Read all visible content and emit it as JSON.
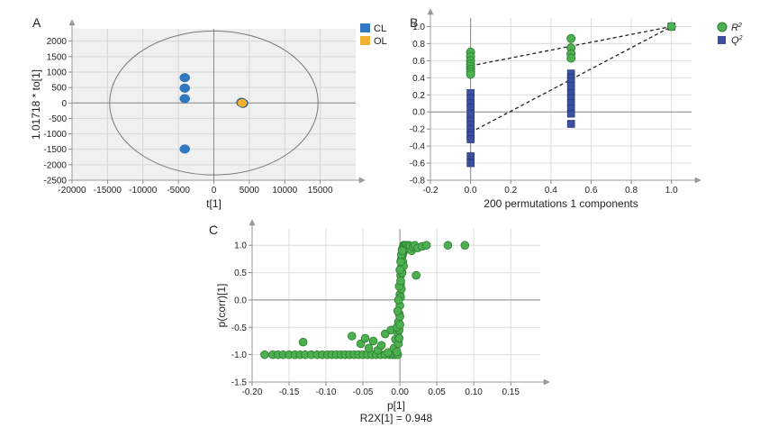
{
  "chart_data": [
    {
      "panel": "A",
      "type": "scatter",
      "xlabel": "t[1]",
      "ylabel": "1.01718 * to[1]",
      "xlim": [
        -20000,
        20000
      ],
      "ylim": [
        -2500,
        2400
      ],
      "xticks": [
        -20000,
        -15000,
        -10000,
        -5000,
        0,
        5000,
        10000,
        15000
      ],
      "yticks": [
        -2500,
        -2000,
        -1500,
        -1000,
        -500,
        0,
        500,
        1000,
        1500,
        2000
      ],
      "colors": {
        "CL": "#2f78c4",
        "OL": "#f0b030",
        "background": "#f0f0f0",
        "grid": "#d6d6d6"
      },
      "legend": [
        {
          "name": "CL",
          "color": "#2f78c4"
        },
        {
          "name": "OL",
          "color": "#f0b030"
        }
      ],
      "ellipse": {
        "cx": 0,
        "cy": 0,
        "rx": 14700,
        "ry": 2330
      },
      "series": [
        {
          "name": "CL",
          "x": [
            -4100,
            -4100,
            -4100,
            -4100
          ],
          "y": [
            820,
            480,
            140,
            -1490
          ]
        },
        {
          "name": "OL",
          "x": [
            3900,
            4100,
            4000
          ],
          "y": [
            20,
            -10,
            0
          ]
        }
      ]
    },
    {
      "panel": "B",
      "type": "scatter",
      "xlabel": "200 permutations 1 components",
      "ylabel": "",
      "xlim": [
        -0.2,
        1.1
      ],
      "ylim": [
        -0.8,
        1.1
      ],
      "xticks": [
        -0.2,
        0,
        0.2,
        0.4,
        0.6,
        0.8,
        1.0
      ],
      "yticks": [
        -0.8,
        -0.6,
        -0.4,
        -0.2,
        0,
        0.2,
        0.4,
        0.6,
        0.8,
        1.0
      ],
      "xtick_labels": [
        "-0.2",
        "0.0",
        "0.2",
        "0.4",
        "0.6",
        "0.8",
        "1.0"
      ],
      "ytick_labels": [
        "-0.8",
        "-0.6",
        "-0.4",
        "-0.2",
        "0.0",
        "0.2",
        "0.4",
        "0.6",
        "0.8",
        "1.0"
      ],
      "legend": [
        {
          "name": "R",
          "sup": "2",
          "marker": "circle",
          "color": "#4caf50"
        },
        {
          "name": "Q",
          "sup": "2",
          "marker": "square",
          "color": "#3a4fa0"
        }
      ],
      "series": [
        {
          "name": "R2",
          "x": [
            0,
            0,
            0,
            0,
            0,
            0,
            0,
            0,
            0.5,
            0.5,
            0.5,
            0.5,
            1.0
          ],
          "y": [
            0.7,
            0.65,
            0.6,
            0.56,
            0.53,
            0.5,
            0.47,
            0.44,
            0.86,
            0.75,
            0.68,
            0.63,
            1.0
          ]
        },
        {
          "name": "Q2",
          "x": [
            0,
            0,
            0,
            0,
            0,
            0,
            0,
            0,
            0,
            0,
            0,
            0,
            0,
            0,
            0.5,
            0.5,
            0.5,
            0.5,
            0.5,
            0.5,
            0.5,
            0.5,
            0.5,
            0.5,
            1.0
          ],
          "y": [
            0.22,
            0.16,
            0.1,
            -0.05,
            -0.1,
            -0.15,
            -0.2,
            -0.25,
            -0.28,
            -0.32,
            -0.52,
            -0.6,
            0.05,
            -0.02,
            0.45,
            0.4,
            0.36,
            0.3,
            0.22,
            0.16,
            0.1,
            0.04,
            -0.02,
            -0.14,
            1.0
          ]
        }
      ],
      "regression_lines": [
        {
          "name": "R2",
          "from": [
            0,
            0.54
          ],
          "to": [
            1.0,
            1.0
          ]
        },
        {
          "name": "Q2",
          "from": [
            0,
            -0.24
          ],
          "to": [
            1.0,
            1.0
          ]
        }
      ]
    },
    {
      "panel": "C",
      "type": "scatter",
      "xlabel": "p[1]",
      "xlabel2": "R2X[1] = 0.948",
      "ylabel": "p(corr)[1]",
      "xlim": [
        -0.2,
        0.19
      ],
      "ylim": [
        -1.5,
        1.3
      ],
      "xticks": [
        -0.2,
        -0.15,
        -0.1,
        -0.05,
        0,
        0.05,
        0.1,
        0.15
      ],
      "yticks": [
        -1.5,
        -1.0,
        -0.5,
        0,
        0.5,
        1.0
      ],
      "xtick_labels": [
        "-0.20",
        "-0.15",
        "-0.10",
        "-0.05",
        "0.00",
        "0.05",
        "0.10",
        "0.15"
      ],
      "ytick_labels": [
        "-1.5",
        "-1.0",
        "-0.5",
        "0.0",
        "0.5",
        "1.0"
      ],
      "series": [
        {
          "name": "variables",
          "x": [
            -0.183,
            -0.172,
            -0.165,
            -0.158,
            -0.15,
            -0.142,
            -0.135,
            -0.128,
            -0.12,
            -0.112,
            -0.105,
            -0.098,
            -0.092,
            -0.086,
            -0.08,
            -0.074,
            -0.068,
            -0.062,
            -0.056,
            -0.05,
            -0.044,
            -0.038,
            -0.032,
            -0.026,
            -0.02,
            -0.014,
            -0.01,
            -0.006,
            -0.003,
            -0.131,
            -0.065,
            -0.053,
            -0.047,
            -0.042,
            -0.036,
            -0.03,
            -0.025,
            -0.02,
            -0.016,
            -0.012,
            -0.008,
            -0.006,
            -0.004,
            -0.003,
            -0.002,
            -0.002,
            -0.001,
            -0.001,
            0.0,
            0.0,
            0.0,
            0.001,
            0.001,
            0.001,
            0.002,
            0.002,
            0.002,
            0.003,
            0.003,
            0.003,
            0.004,
            0.004,
            0.004,
            0.005,
            0.005,
            0.005,
            0.006,
            0.006,
            0.007,
            0.008,
            0.009,
            0.01,
            0.012,
            0.014,
            0.016,
            0.018,
            0.02,
            0.024,
            0.03,
            0.036,
            0.022,
            0.065,
            0.088,
            -0.004,
            -0.003,
            -0.002,
            -0.001,
            0.0,
            0.001,
            0.002,
            0.003,
            0.001,
            0.0,
            -0.001
          ],
          "y": [
            -1.0,
            -1.0,
            -1.0,
            -1.0,
            -1.0,
            -1.0,
            -1.0,
            -1.0,
            -1.0,
            -1.0,
            -1.0,
            -1.0,
            -1.0,
            -1.0,
            -1.0,
            -1.0,
            -1.0,
            -1.0,
            -1.0,
            -1.0,
            -1.0,
            -1.0,
            -1.0,
            -1.0,
            -1.0,
            -1.0,
            -1.0,
            -1.0,
            -1.0,
            -0.77,
            -0.66,
            -0.8,
            -0.7,
            -0.88,
            -0.75,
            -0.92,
            -0.83,
            -0.62,
            -0.96,
            -0.55,
            -0.88,
            -0.72,
            -0.95,
            -0.6,
            -0.4,
            -0.8,
            -0.25,
            -0.55,
            -0.1,
            0.1,
            -0.3,
            0.3,
            0.05,
            0.45,
            0.6,
            0.2,
            0.75,
            0.8,
            0.5,
            0.92,
            0.95,
            0.7,
            0.85,
            1.0,
            0.88,
            0.62,
            1.0,
            0.92,
            1.0,
            0.97,
            1.0,
            0.95,
            1.0,
            0.98,
            0.9,
            0.97,
            1.0,
            0.95,
            0.98,
            1.0,
            0.45,
            1.0,
            1.0,
            -0.5,
            -0.2,
            0.0,
            0.25,
            0.55,
            0.7,
            0.83,
            0.9,
            0.35,
            -0.45,
            -0.7
          ]
        }
      ]
    }
  ]
}
